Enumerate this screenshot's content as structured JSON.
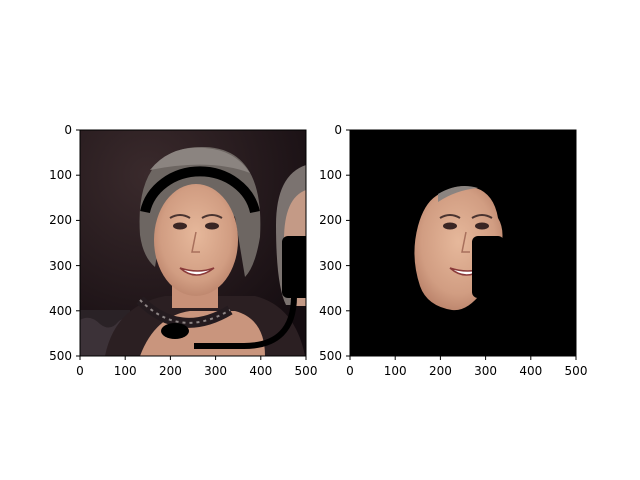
{
  "figure": {
    "panels": [
      {
        "id": "left",
        "content": "original-photo-with-headset-overlay",
        "xlim": [
          0,
          500
        ],
        "ylim": [
          500,
          0
        ],
        "xticks": [
          "0",
          "100",
          "200",
          "300",
          "400",
          "500"
        ],
        "yticks": [
          "0",
          "100",
          "200",
          "300",
          "400",
          "500"
        ]
      },
      {
        "id": "right",
        "content": "segmented-face-on-black-background",
        "xlim": [
          0,
          500
        ],
        "ylim": [
          500,
          0
        ],
        "xticks": [
          "0",
          "100",
          "200",
          "300",
          "400",
          "500"
        ],
        "yticks": [
          "0",
          "100",
          "200",
          "300",
          "400",
          "500"
        ]
      }
    ],
    "colors": {
      "background": "#ffffff",
      "mask": "#000000",
      "skin": "#d9a98c",
      "hair": "#6f6a66",
      "photo_bg": "#1e1418"
    }
  }
}
